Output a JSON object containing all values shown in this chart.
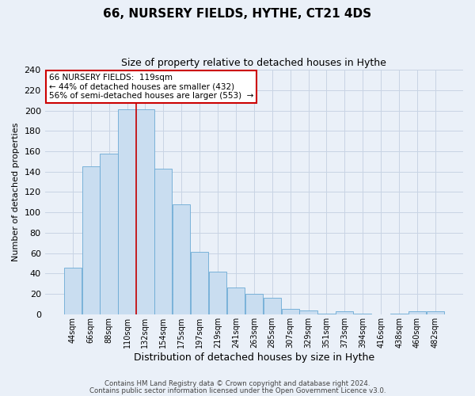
{
  "title": "66, NURSERY FIELDS, HYTHE, CT21 4DS",
  "subtitle": "Size of property relative to detached houses in Hythe",
  "xlabel": "Distribution of detached houses by size in Hythe",
  "ylabel": "Number of detached properties",
  "bar_labels": [
    "44sqm",
    "66sqm",
    "88sqm",
    "110sqm",
    "132sqm",
    "154sqm",
    "175sqm",
    "197sqm",
    "219sqm",
    "241sqm",
    "263sqm",
    "285sqm",
    "307sqm",
    "329sqm",
    "351sqm",
    "373sqm",
    "394sqm",
    "416sqm",
    "438sqm",
    "460sqm",
    "482sqm"
  ],
  "bar_heights": [
    46,
    145,
    158,
    201,
    201,
    143,
    108,
    61,
    42,
    26,
    20,
    16,
    5,
    4,
    1,
    3,
    1,
    0,
    1,
    3,
    3
  ],
  "bar_color": "#c9ddf0",
  "bar_edge_color": "#6aaad4",
  "grid_color": "#c8d4e4",
  "background_color": "#eaf0f8",
  "vline_color": "#cc0000",
  "vline_pos": 3.5,
  "annotation_text": "66 NURSERY FIELDS:  119sqm\n← 44% of detached houses are smaller (432)\n56% of semi-detached houses are larger (553)  →",
  "annotation_box_color": "#ffffff",
  "annotation_border_color": "#cc0000",
  "ylim": [
    0,
    240
  ],
  "yticks": [
    0,
    20,
    40,
    60,
    80,
    100,
    120,
    140,
    160,
    180,
    200,
    220,
    240
  ],
  "footer_line1": "Contains HM Land Registry data © Crown copyright and database right 2024.",
  "footer_line2": "Contains public sector information licensed under the Open Government Licence v3.0."
}
